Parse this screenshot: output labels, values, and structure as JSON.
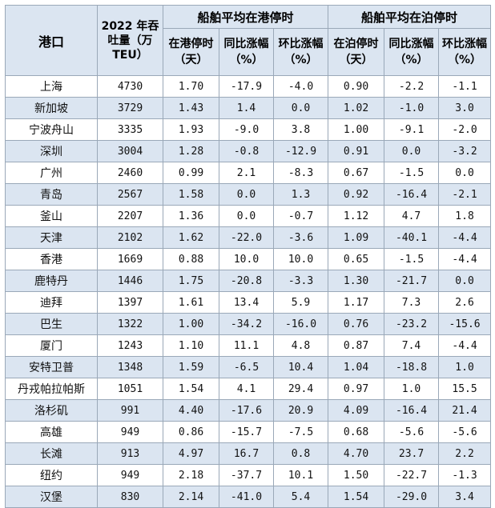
{
  "headers": {
    "port": "港口",
    "throughput": "2022 年吞吐量（万 TEU）",
    "group_in_port": "船舶平均在港停时",
    "group_at_berth": "船舶平均在泊停时",
    "in_port_days": "在港停时（天）",
    "yoy": "同比涨幅（%）",
    "mom": "环比涨幅（%）",
    "at_berth_days": "在泊停时（天）",
    "yoy2": "同比涨幅（%）",
    "mom2": "环比涨幅（%）"
  },
  "rows": [
    {
      "port": "上海",
      "throughput": "4730",
      "in_port": "1.70",
      "in_yoy": "-17.9",
      "in_mom": "-4.0",
      "berth": "0.90",
      "berth_yoy": "-2.2",
      "berth_mom": "-1.1"
    },
    {
      "port": "新加坡",
      "throughput": "3729",
      "in_port": "1.43",
      "in_yoy": "1.4",
      "in_mom": "0.0",
      "berth": "1.02",
      "berth_yoy": "-1.0",
      "berth_mom": "3.0"
    },
    {
      "port": "宁波舟山",
      "throughput": "3335",
      "in_port": "1.93",
      "in_yoy": "-9.0",
      "in_mom": "3.8",
      "berth": "1.00",
      "berth_yoy": "-9.1",
      "berth_mom": "-2.0"
    },
    {
      "port": "深圳",
      "throughput": "3004",
      "in_port": "1.28",
      "in_yoy": "-0.8",
      "in_mom": "-12.9",
      "berth": "0.91",
      "berth_yoy": "0.0",
      "berth_mom": "-3.2"
    },
    {
      "port": "广州",
      "throughput": "2460",
      "in_port": "0.99",
      "in_yoy": "2.1",
      "in_mom": "-8.3",
      "berth": "0.67",
      "berth_yoy": "-1.5",
      "berth_mom": "0.0"
    },
    {
      "port": "青岛",
      "throughput": "2567",
      "in_port": "1.58",
      "in_yoy": "0.0",
      "in_mom": "1.3",
      "berth": "0.92",
      "berth_yoy": "-16.4",
      "berth_mom": "-2.1"
    },
    {
      "port": "釜山",
      "throughput": "2207",
      "in_port": "1.36",
      "in_yoy": "0.0",
      "in_mom": "-0.7",
      "berth": "1.12",
      "berth_yoy": "4.7",
      "berth_mom": "1.8"
    },
    {
      "port": "天津",
      "throughput": "2102",
      "in_port": "1.62",
      "in_yoy": "-22.0",
      "in_mom": "-3.6",
      "berth": "1.09",
      "berth_yoy": "-40.1",
      "berth_mom": "-4.4"
    },
    {
      "port": "香港",
      "throughput": "1669",
      "in_port": "0.88",
      "in_yoy": "10.0",
      "in_mom": "10.0",
      "berth": "0.65",
      "berth_yoy": "-1.5",
      "berth_mom": "-4.4"
    },
    {
      "port": "鹿特丹",
      "throughput": "1446",
      "in_port": "1.75",
      "in_yoy": "-20.8",
      "in_mom": "-3.3",
      "berth": "1.30",
      "berth_yoy": "-21.7",
      "berth_mom": "0.0"
    },
    {
      "port": "迪拜",
      "throughput": "1397",
      "in_port": "1.61",
      "in_yoy": "13.4",
      "in_mom": "5.9",
      "berth": "1.17",
      "berth_yoy": "7.3",
      "berth_mom": "2.6"
    },
    {
      "port": "巴生",
      "throughput": "1322",
      "in_port": "1.00",
      "in_yoy": "-34.2",
      "in_mom": "-16.0",
      "berth": "0.76",
      "berth_yoy": "-23.2",
      "berth_mom": "-15.6"
    },
    {
      "port": "厦门",
      "throughput": "1243",
      "in_port": "1.10",
      "in_yoy": "11.1",
      "in_mom": "4.8",
      "berth": "0.87",
      "berth_yoy": "7.4",
      "berth_mom": "-4.4"
    },
    {
      "port": "安特卫普",
      "throughput": "1348",
      "in_port": "1.59",
      "in_yoy": "-6.5",
      "in_mom": "10.4",
      "berth": "1.04",
      "berth_yoy": "-18.8",
      "berth_mom": "1.0"
    },
    {
      "port": "丹戎帕拉帕斯",
      "throughput": "1051",
      "in_port": "1.54",
      "in_yoy": "4.1",
      "in_mom": "29.4",
      "berth": "0.97",
      "berth_yoy": "1.0",
      "berth_mom": "15.5"
    },
    {
      "port": "洛杉矶",
      "throughput": "991",
      "in_port": "4.40",
      "in_yoy": "-17.6",
      "in_mom": "20.9",
      "berth": "4.09",
      "berth_yoy": "-16.4",
      "berth_mom": "21.4"
    },
    {
      "port": "高雄",
      "throughput": "949",
      "in_port": "0.86",
      "in_yoy": "-15.7",
      "in_mom": "-7.5",
      "berth": "0.68",
      "berth_yoy": "-5.6",
      "berth_mom": "-5.6"
    },
    {
      "port": "长滩",
      "throughput": "913",
      "in_port": "4.97",
      "in_yoy": "16.7",
      "in_mom": "0.8",
      "berth": "4.70",
      "berth_yoy": "23.7",
      "berth_mom": "2.2"
    },
    {
      "port": "纽约",
      "throughput": "949",
      "in_port": "2.18",
      "in_yoy": "-37.7",
      "in_mom": "10.1",
      "berth": "1.50",
      "berth_yoy": "-22.7",
      "berth_mom": "-1.3"
    },
    {
      "port": "汉堡",
      "throughput": "830",
      "in_port": "2.14",
      "in_yoy": "-41.0",
      "in_mom": "5.4",
      "berth": "1.54",
      "berth_yoy": "-29.0",
      "berth_mom": "3.4"
    }
  ]
}
